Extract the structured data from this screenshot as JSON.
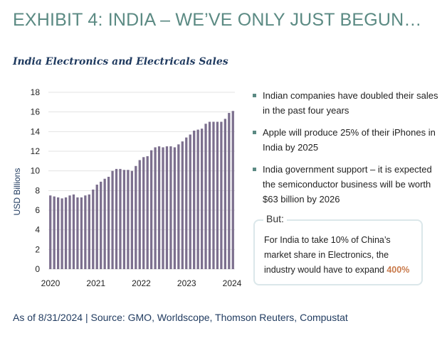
{
  "exhibit_title": "EXHIBIT 4: INDIA – WE’VE ONLY JUST BEGUN…",
  "chart_title": "India Electronics and Electricals Sales",
  "bullets": [
    "Indian companies have doubled their sales in the past four years",
    "Apple will produce 25% of their iPhones in India by 2025",
    "India government support – it is expected the semiconductor business will be worth $63 billion by 2026"
  ],
  "callout": {
    "label": "But:",
    "text": "For India to take 10% of China’s market share in Electronics, the industry would have to expand ",
    "highlight": "400%"
  },
  "footer": "As of 8/31/2024 | Source: GMO,  Worldscope, Thomson Reuters, Compustat",
  "colors": {
    "bar": "#7c6f8e",
    "accent": "#5b8a83",
    "title": "#1f3a5f",
    "highlight": "#c97a4b"
  },
  "chart_data": {
    "type": "bar",
    "ylabel": "USD Billions",
    "ylim": [
      0,
      18
    ],
    "yticks": [
      0,
      2,
      4,
      6,
      8,
      10,
      12,
      14,
      16,
      18
    ],
    "xticks": [
      "2020",
      "2021",
      "2022",
      "2023",
      "2024"
    ],
    "x_range": [
      2020,
      2024
    ],
    "grid": true,
    "values": [
      7.5,
      7.4,
      7.3,
      7.2,
      7.3,
      7.5,
      7.6,
      7.3,
      7.3,
      7.5,
      7.6,
      8.1,
      8.6,
      8.9,
      9.2,
      9.4,
      10.0,
      10.2,
      10.2,
      10.1,
      10.1,
      10.0,
      10.5,
      11.1,
      11.4,
      11.5,
      12.1,
      12.4,
      12.5,
      12.4,
      12.5,
      12.5,
      12.4,
      12.7,
      13.0,
      13.4,
      13.7,
      14.1,
      14.2,
      14.3,
      14.8,
      15.0,
      15.0,
      15.0,
      15.0,
      15.3,
      15.9,
      16.1
    ]
  }
}
